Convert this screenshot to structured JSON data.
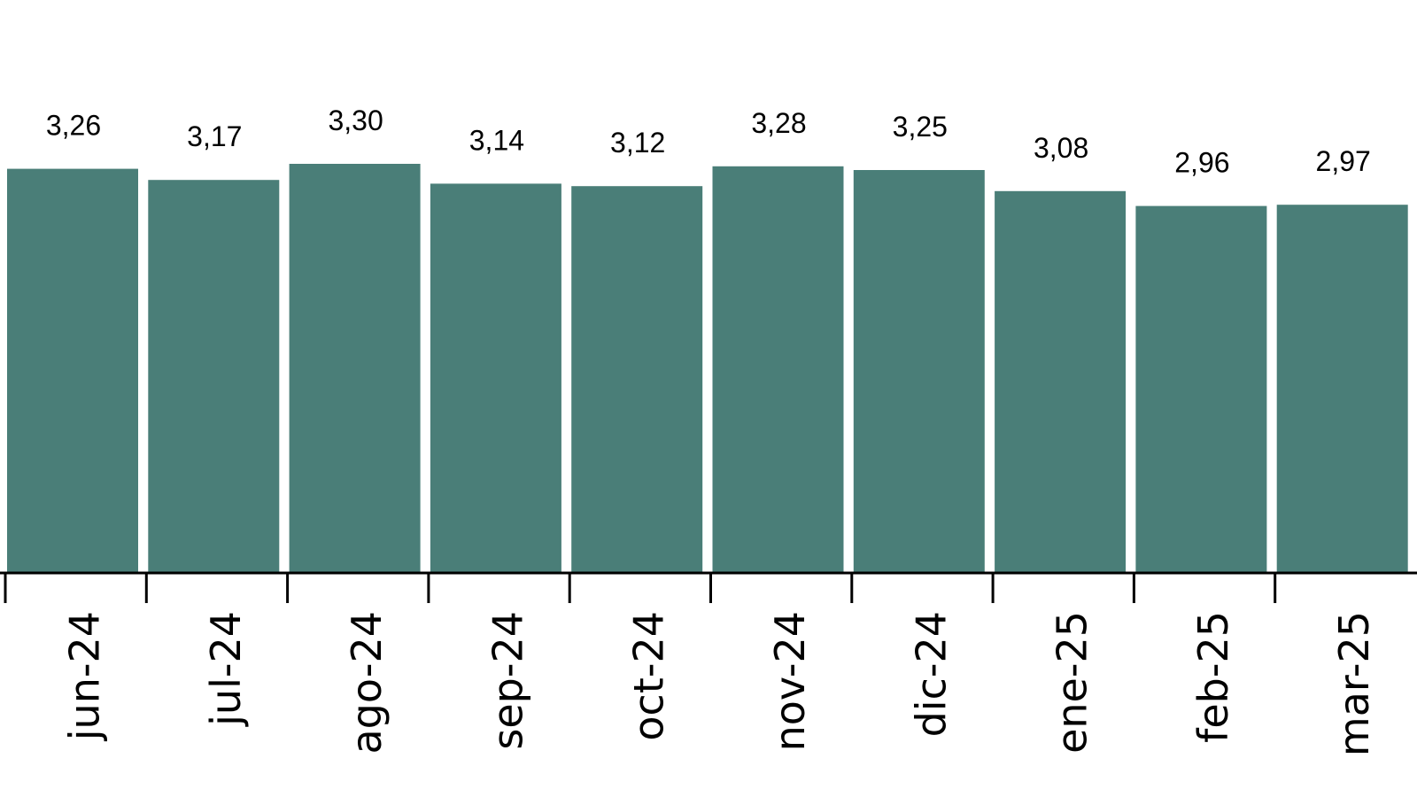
{
  "chart_data": {
    "type": "bar",
    "title": "",
    "xlabel": "",
    "ylabel": "",
    "categories": [
      "jun-24",
      "jul-24",
      "ago-24",
      "sep-24",
      "oct-24",
      "nov-24",
      "dic-24",
      "ene-25",
      "feb-25",
      "mar-25"
    ],
    "values": [
      3.26,
      3.17,
      3.3,
      3.14,
      3.12,
      3.28,
      3.25,
      3.08,
      2.96,
      2.97
    ],
    "data_labels": [
      "3,26",
      "3,17",
      "3,30",
      "3,14",
      "3,12",
      "3,28",
      "3,25",
      "3,08",
      "2,96",
      "2,97"
    ],
    "ylim": [
      0,
      4.6
    ],
    "grid": false,
    "legend": "none",
    "colors": {
      "bar": "#4a7e78",
      "axis": "#000000",
      "text": "#000000"
    }
  }
}
